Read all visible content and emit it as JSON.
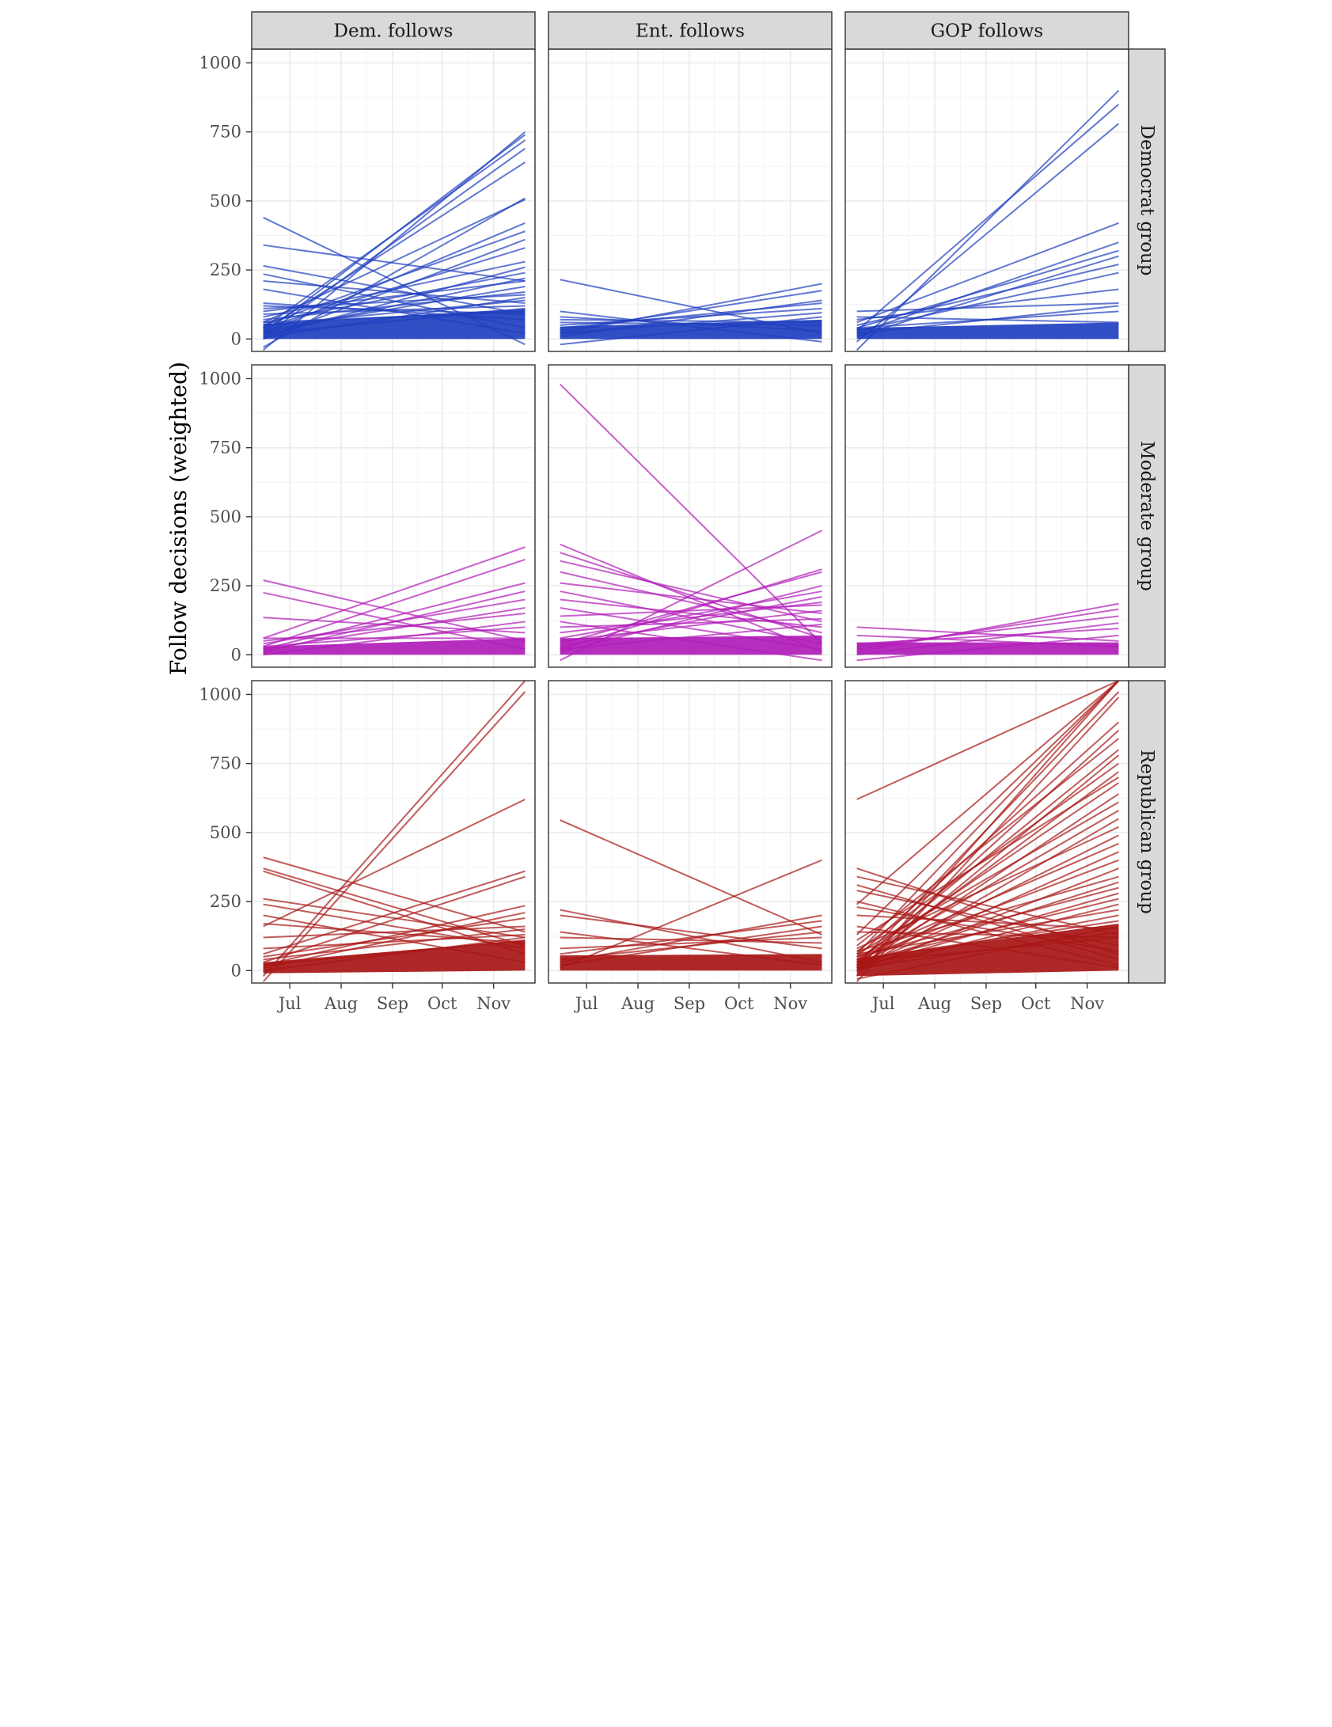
{
  "chart_data": {
    "type": "line",
    "ylabel": "Follow decisions (weighted)",
    "xlabel": "",
    "x_ticks": [
      "Jul",
      "Aug",
      "Sep",
      "Oct",
      "Nov"
    ],
    "y_ticks": [
      "0",
      "250",
      "500",
      "750",
      "1000"
    ],
    "x_range": [
      "2020-06-08",
      "2020-11-26"
    ],
    "ylim": [
      -45,
      1050
    ],
    "grid": true,
    "legend": "none",
    "columns": [
      "Dem. follows",
      "Ent. follows",
      "GOP follows"
    ],
    "rows": [
      "Democrat group",
      "Moderate group",
      "Republican group"
    ],
    "row_colors": [
      "#1f3fbf",
      "#b01cb8",
      "#a81616"
    ],
    "x_start": "2020-06-15",
    "x_end": "2020-11-20",
    "panels": [
      {
        "column": "Dem. follows",
        "row": "Democrat group",
        "series": [
          {
            "y_start": 440,
            "y_end": -20
          },
          {
            "y_start": 340,
            "y_end": 210
          },
          {
            "y_start": 265,
            "y_end": 90
          },
          {
            "y_start": 235,
            "y_end": 40
          },
          {
            "y_start": 210,
            "y_end": 130
          },
          {
            "y_start": 180,
            "y_end": 20
          },
          {
            "y_start": 130,
            "y_end": 70
          },
          {
            "y_start": 110,
            "y_end": 160
          },
          {
            "y_start": -40,
            "y_end": 750
          },
          {
            "y_start": 20,
            "y_end": 740
          },
          {
            "y_start": 40,
            "y_end": 720
          },
          {
            "y_start": 10,
            "y_end": 690
          },
          {
            "y_start": 30,
            "y_end": 640
          },
          {
            "y_start": -30,
            "y_end": 510
          },
          {
            "y_start": 60,
            "y_end": 505
          },
          {
            "y_start": 20,
            "y_end": 420
          },
          {
            "y_start": 50,
            "y_end": 390
          },
          {
            "y_start": 0,
            "y_end": 360
          },
          {
            "y_start": 40,
            "y_end": 330
          },
          {
            "y_start": 80,
            "y_end": 280
          },
          {
            "y_start": 10,
            "y_end": 260
          },
          {
            "y_start": 60,
            "y_end": 240
          },
          {
            "y_start": 20,
            "y_end": 220
          },
          {
            "y_start": 100,
            "y_end": 210
          },
          {
            "y_start": 30,
            "y_end": 190
          },
          {
            "y_start": 70,
            "y_end": 170
          },
          {
            "y_start": 5,
            "y_end": 150
          },
          {
            "y_start": 50,
            "y_end": 140
          },
          {
            "y_start": 90,
            "y_end": 120
          },
          {
            "y_start": 20,
            "y_end": 110
          },
          {
            "y_start": 120,
            "y_end": 90
          },
          {
            "y_start": 60,
            "y_end": 100
          }
        ],
        "band": {
          "low_start": 0,
          "low_end": 0,
          "high_start": 55,
          "high_end": 110
        }
      },
      {
        "column": "Ent. follows",
        "row": "Democrat group",
        "series": [
          {
            "y_start": 215,
            "y_end": 20
          },
          {
            "y_start": 100,
            "y_end": -10
          },
          {
            "y_start": 80,
            "y_end": 30
          },
          {
            "y_start": 60,
            "y_end": 50
          },
          {
            "y_start": 20,
            "y_end": 200
          },
          {
            "y_start": 30,
            "y_end": 175
          },
          {
            "y_start": 10,
            "y_end": 140
          },
          {
            "y_start": 40,
            "y_end": 130
          },
          {
            "y_start": 50,
            "y_end": 110
          },
          {
            "y_start": 20,
            "y_end": 95
          },
          {
            "y_start": -20,
            "y_end": 80
          },
          {
            "y_start": 70,
            "y_end": 60
          }
        ],
        "band": {
          "low_start": 0,
          "low_end": 0,
          "high_start": 45,
          "high_end": 70
        }
      },
      {
        "column": "GOP follows",
        "row": "Democrat group",
        "series": [
          {
            "y_start": -40,
            "y_end": 900
          },
          {
            "y_start": 30,
            "y_end": 850
          },
          {
            "y_start": -10,
            "y_end": 780
          },
          {
            "y_start": 60,
            "y_end": 420
          },
          {
            "y_start": 20,
            "y_end": 350
          },
          {
            "y_start": 40,
            "y_end": 320
          },
          {
            "y_start": 10,
            "y_end": 300
          },
          {
            "y_start": 50,
            "y_end": 270
          },
          {
            "y_start": 30,
            "y_end": 240
          },
          {
            "y_start": 70,
            "y_end": 180
          },
          {
            "y_start": 100,
            "y_end": 130
          },
          {
            "y_start": 20,
            "y_end": 120
          },
          {
            "y_start": 40,
            "y_end": 100
          },
          {
            "y_start": 80,
            "y_end": 60
          }
        ],
        "band": {
          "low_start": 0,
          "low_end": 0,
          "high_start": 40,
          "high_end": 60
        }
      },
      {
        "column": "Dem. follows",
        "row": "Moderate group",
        "series": [
          {
            "y_start": 270,
            "y_end": 50
          },
          {
            "y_start": 225,
            "y_end": 20
          },
          {
            "y_start": 135,
            "y_end": 80
          },
          {
            "y_start": 60,
            "y_end": 390
          },
          {
            "y_start": 30,
            "y_end": 345
          },
          {
            "y_start": 20,
            "y_end": 260
          },
          {
            "y_start": 10,
            "y_end": 230
          },
          {
            "y_start": 40,
            "y_end": 200
          },
          {
            "y_start": 20,
            "y_end": 170
          },
          {
            "y_start": 50,
            "y_end": 150
          },
          {
            "y_start": 0,
            "y_end": 120
          },
          {
            "y_start": 30,
            "y_end": 100
          },
          {
            "y_start": 60,
            "y_end": 60
          }
        ],
        "band": {
          "low_start": 0,
          "low_end": 0,
          "high_start": 30,
          "high_end": 60
        }
      },
      {
        "column": "Ent. follows",
        "row": "Moderate group",
        "series": [
          {
            "y_start": 980,
            "y_end": 40
          },
          {
            "y_start": 400,
            "y_end": 10
          },
          {
            "y_start": 370,
            "y_end": 60
          },
          {
            "y_start": 340,
            "y_end": 120
          },
          {
            "y_start": 300,
            "y_end": 80
          },
          {
            "y_start": 260,
            "y_end": 150
          },
          {
            "y_start": 230,
            "y_end": 40
          },
          {
            "y_start": 200,
            "y_end": 100
          },
          {
            "y_start": 170,
            "y_end": 20
          },
          {
            "y_start": 140,
            "y_end": 180
          },
          {
            "y_start": 120,
            "y_end": -20
          },
          {
            "y_start": -20,
            "y_end": 450
          },
          {
            "y_start": 20,
            "y_end": 310
          },
          {
            "y_start": 40,
            "y_end": 300
          },
          {
            "y_start": 10,
            "y_end": 250
          },
          {
            "y_start": 60,
            "y_end": 230
          },
          {
            "y_start": 30,
            "y_end": 210
          },
          {
            "y_start": 80,
            "y_end": 190
          },
          {
            "y_start": 50,
            "y_end": 160
          },
          {
            "y_start": 100,
            "y_end": 130
          },
          {
            "y_start": 20,
            "y_end": 110
          }
        ],
        "band": {
          "low_start": 0,
          "low_end": 0,
          "high_start": 60,
          "high_end": 70
        }
      },
      {
        "column": "GOP follows",
        "row": "Moderate group",
        "series": [
          {
            "y_start": 100,
            "y_end": 50
          },
          {
            "y_start": 70,
            "y_end": 30
          },
          {
            "y_start": 10,
            "y_end": 185
          },
          {
            "y_start": 20,
            "y_end": 165
          },
          {
            "y_start": 30,
            "y_end": 140
          },
          {
            "y_start": 0,
            "y_end": 115
          },
          {
            "y_start": 40,
            "y_end": 95
          },
          {
            "y_start": -20,
            "y_end": 70
          }
        ],
        "band": {
          "low_start": 0,
          "low_end": 0,
          "high_start": 45,
          "high_end": 45
        }
      },
      {
        "column": "Dem. follows",
        "row": "Republican group",
        "series": [
          {
            "y_start": 410,
            "y_end": 140
          },
          {
            "y_start": 370,
            "y_end": 90
          },
          {
            "y_start": 360,
            "y_end": 60
          },
          {
            "y_start": 260,
            "y_end": 120
          },
          {
            "y_start": 240,
            "y_end": 80
          },
          {
            "y_start": 200,
            "y_end": 30
          },
          {
            "y_start": 170,
            "y_end": 100
          },
          {
            "y_start": -20,
            "y_end": 1050
          },
          {
            "y_start": -40,
            "y_end": 1010
          },
          {
            "y_start": 160,
            "y_end": 620
          },
          {
            "y_start": 60,
            "y_end": 360
          },
          {
            "y_start": 30,
            "y_end": 340
          },
          {
            "y_start": 20,
            "y_end": 235
          },
          {
            "y_start": 10,
            "y_end": 210
          },
          {
            "y_start": 50,
            "y_end": 190
          },
          {
            "y_start": 120,
            "y_end": 160
          },
          {
            "y_start": 40,
            "y_end": 150
          },
          {
            "y_start": 80,
            "y_end": 130
          },
          {
            "y_start": 0,
            "y_end": 120
          },
          {
            "y_start": 20,
            "y_end": 110
          }
        ],
        "band": {
          "low_start": -10,
          "low_end": 0,
          "high_start": 30,
          "high_end": 110
        }
      },
      {
        "column": "Ent. follows",
        "row": "Republican group",
        "series": [
          {
            "y_start": 545,
            "y_end": 130
          },
          {
            "y_start": 220,
            "y_end": 30
          },
          {
            "y_start": 200,
            "y_end": 80
          },
          {
            "y_start": 140,
            "y_end": 20
          },
          {
            "y_start": 120,
            "y_end": 100
          },
          {
            "y_start": 10,
            "y_end": 400
          },
          {
            "y_start": 30,
            "y_end": 200
          },
          {
            "y_start": 60,
            "y_end": 180
          },
          {
            "y_start": 20,
            "y_end": 160
          },
          {
            "y_start": 40,
            "y_end": 140
          },
          {
            "y_start": 80,
            "y_end": 120
          }
        ],
        "band": {
          "low_start": 0,
          "low_end": 0,
          "high_start": 55,
          "high_end": 60
        }
      },
      {
        "column": "GOP follows",
        "row": "Republican group",
        "series": [
          {
            "y_start": 620,
            "y_end": 1050
          },
          {
            "y_start": 240,
            "y_end": 1050
          },
          {
            "y_start": 130,
            "y_end": 1050
          },
          {
            "y_start": 60,
            "y_end": 1050
          },
          {
            "y_start": -20,
            "y_end": 1050
          },
          {
            "y_start": 20,
            "y_end": 1010
          },
          {
            "y_start": -40,
            "y_end": 990
          },
          {
            "y_start": 50,
            "y_end": 900
          },
          {
            "y_start": 10,
            "y_end": 870
          },
          {
            "y_start": 90,
            "y_end": 840
          },
          {
            "y_start": 30,
            "y_end": 800
          },
          {
            "y_start": 0,
            "y_end": 780
          },
          {
            "y_start": 70,
            "y_end": 750
          },
          {
            "y_start": 20,
            "y_end": 720
          },
          {
            "y_start": 110,
            "y_end": 700
          },
          {
            "y_start": 40,
            "y_end": 680
          },
          {
            "y_start": 10,
            "y_end": 640
          },
          {
            "y_start": 60,
            "y_end": 610
          },
          {
            "y_start": 30,
            "y_end": 580
          },
          {
            "y_start": 0,
            "y_end": 550
          },
          {
            "y_start": 80,
            "y_end": 520
          },
          {
            "y_start": 20,
            "y_end": 490
          },
          {
            "y_start": 50,
            "y_end": 460
          },
          {
            "y_start": 10,
            "y_end": 430
          },
          {
            "y_start": 40,
            "y_end": 400
          },
          {
            "y_start": 0,
            "y_end": 370
          },
          {
            "y_start": 70,
            "y_end": 340
          },
          {
            "y_start": 20,
            "y_end": 320
          },
          {
            "y_start": 50,
            "y_end": 300
          },
          {
            "y_start": 10,
            "y_end": 280
          },
          {
            "y_start": 30,
            "y_end": 260
          },
          {
            "y_start": 0,
            "y_end": 240
          },
          {
            "y_start": 60,
            "y_end": 220
          },
          {
            "y_start": 20,
            "y_end": 200
          },
          {
            "y_start": 40,
            "y_end": 180
          },
          {
            "y_start": 370,
            "y_end": 60
          },
          {
            "y_start": 340,
            "y_end": 130
          },
          {
            "y_start": 310,
            "y_end": 40
          },
          {
            "y_start": 290,
            "y_end": 90
          },
          {
            "y_start": 250,
            "y_end": 20
          },
          {
            "y_start": 230,
            "y_end": 70
          },
          {
            "y_start": 200,
            "y_end": 150
          },
          {
            "y_start": 160,
            "y_end": 10
          },
          {
            "y_start": 140,
            "y_end": 120
          },
          {
            "y_start": -30,
            "y_end": 160
          },
          {
            "y_start": 10,
            "y_end": 140
          },
          {
            "y_start": 30,
            "y_end": 120
          }
        ],
        "band": {
          "low_start": -20,
          "low_end": 0,
          "high_start": 45,
          "high_end": 170
        }
      }
    ]
  }
}
